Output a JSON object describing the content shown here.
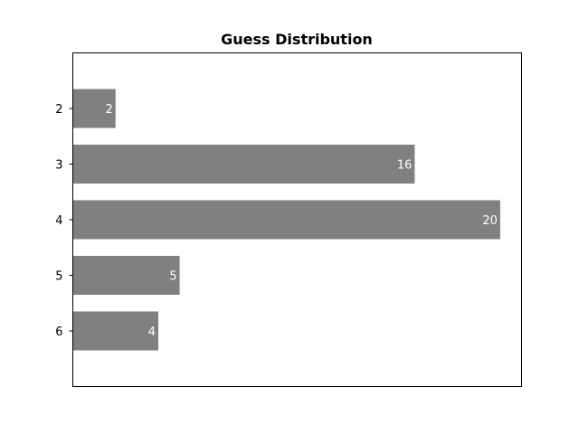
{
  "chart_data": {
    "type": "bar",
    "orientation": "horizontal",
    "title": "Guess Distribution",
    "categories": [
      "2",
      "3",
      "4",
      "5",
      "6"
    ],
    "values": [
      2,
      16,
      20,
      5,
      4
    ],
    "xlabel": "",
    "ylabel": "",
    "xlim": [
      0,
      21
    ],
    "grid": false,
    "x_axis_ticks_visible": false,
    "bar_color": "#808080",
    "bar_label_color": "#ffffff"
  }
}
